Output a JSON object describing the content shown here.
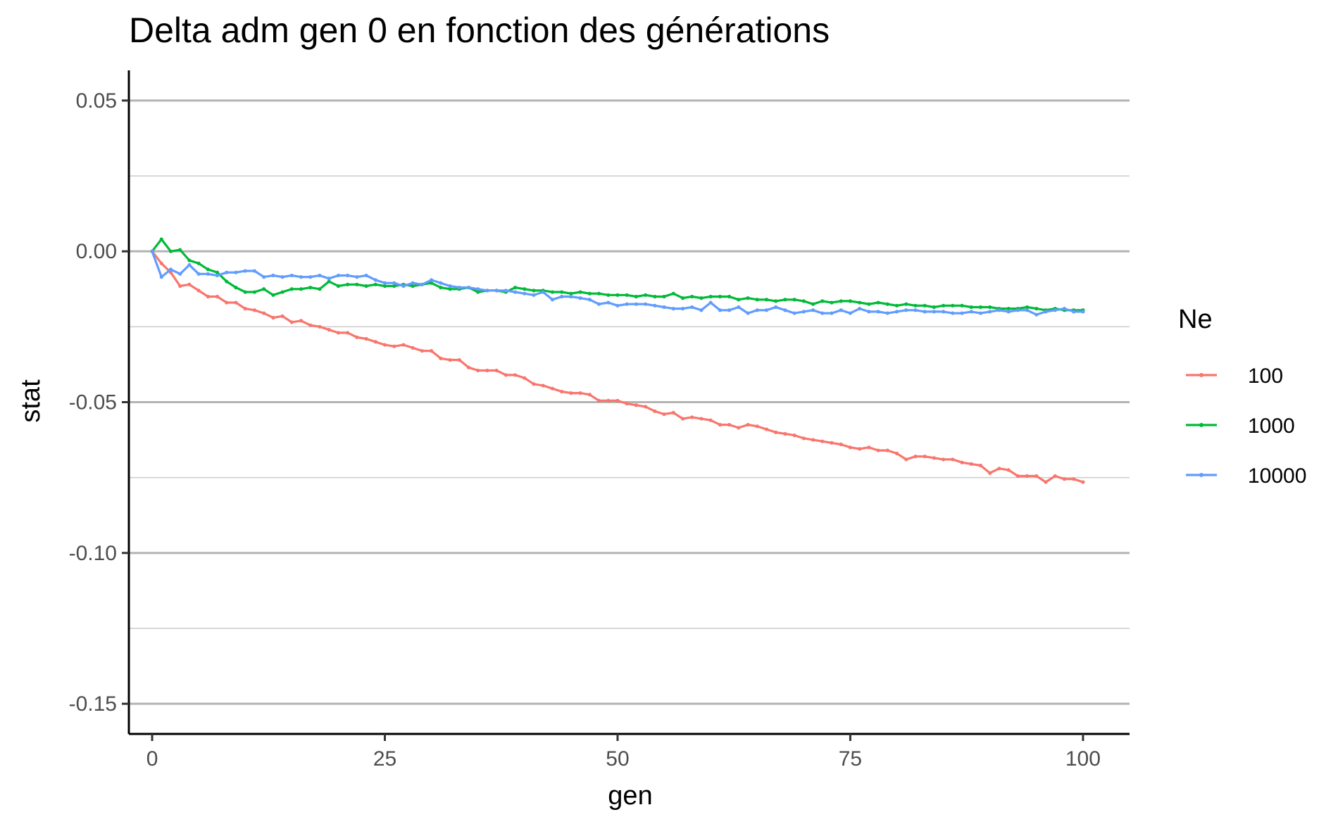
{
  "chart_data": {
    "type": "line",
    "title": "Delta adm gen 0 en fonction des générations",
    "xlabel": "gen",
    "ylabel": "stat",
    "xlim": [
      -2.5,
      105
    ],
    "ylim": [
      -0.16,
      0.06
    ],
    "x_ticks": [
      0,
      25,
      50,
      75,
      100
    ],
    "x_tick_labels": [
      "0",
      "25",
      "50",
      "75",
      "100"
    ],
    "y_ticks": [
      0.05,
      0.0,
      -0.05,
      -0.1,
      -0.15
    ],
    "y_tick_labels": [
      "0.05",
      "0.00",
      "-0.05",
      "-0.10",
      "-0.15"
    ],
    "y_minor_ticks": [
      0.025,
      -0.025,
      -0.075,
      -0.125
    ],
    "grid": "horizontal major and minor",
    "legend": {
      "title": "Ne",
      "position": "right"
    },
    "series": [
      {
        "name": "100",
        "color": "#F8766D",
        "x": [
          0,
          1,
          2,
          3,
          4,
          5,
          6,
          7,
          8,
          9,
          10,
          11,
          12,
          13,
          14,
          15,
          16,
          17,
          18,
          19,
          20,
          21,
          22,
          23,
          24,
          25,
          26,
          27,
          28,
          29,
          30,
          31,
          32,
          33,
          34,
          35,
          36,
          37,
          38,
          39,
          40,
          41,
          42,
          43,
          44,
          45,
          46,
          47,
          48,
          49,
          50,
          51,
          52,
          53,
          54,
          55,
          56,
          57,
          58,
          59,
          60,
          61,
          62,
          63,
          64,
          65,
          66,
          67,
          68,
          69,
          70,
          71,
          72,
          73,
          74,
          75,
          76,
          77,
          78,
          79,
          80,
          81,
          82,
          83,
          84,
          85,
          86,
          87,
          88,
          89,
          90,
          91,
          92,
          93,
          94,
          95,
          96,
          97,
          98,
          99,
          100
        ],
        "values": [
          0.0,
          -0.004,
          -0.007,
          -0.0115,
          -0.011,
          -0.013,
          -0.015,
          -0.015,
          -0.017,
          -0.017,
          -0.019,
          -0.0195,
          -0.0205,
          -0.022,
          -0.0215,
          -0.0235,
          -0.023,
          -0.0245,
          -0.025,
          -0.026,
          -0.027,
          -0.027,
          -0.0285,
          -0.029,
          -0.03,
          -0.031,
          -0.0315,
          -0.031,
          -0.032,
          -0.033,
          -0.033,
          -0.0355,
          -0.036,
          -0.036,
          -0.0385,
          -0.0395,
          -0.0395,
          -0.0395,
          -0.041,
          -0.041,
          -0.042,
          -0.044,
          -0.0445,
          -0.0455,
          -0.0465,
          -0.047,
          -0.047,
          -0.0475,
          -0.0495,
          -0.0495,
          -0.0495,
          -0.0505,
          -0.051,
          -0.0515,
          -0.053,
          -0.054,
          -0.0535,
          -0.0555,
          -0.055,
          -0.0555,
          -0.056,
          -0.0575,
          -0.0575,
          -0.0585,
          -0.0575,
          -0.058,
          -0.059,
          -0.06,
          -0.0605,
          -0.061,
          -0.062,
          -0.0625,
          -0.063,
          -0.0635,
          -0.064,
          -0.065,
          -0.0655,
          -0.065,
          -0.066,
          -0.066,
          -0.067,
          -0.069,
          -0.068,
          -0.068,
          -0.0685,
          -0.069,
          -0.069,
          -0.07,
          -0.0705,
          -0.071,
          -0.0735,
          -0.072,
          -0.0725,
          -0.0745,
          -0.0745,
          -0.0745,
          -0.0765,
          -0.0745,
          -0.0755,
          -0.0755,
          -0.0765
        ]
      },
      {
        "name": "1000",
        "color": "#00BA38",
        "x": [
          0,
          1,
          2,
          3,
          4,
          5,
          6,
          7,
          8,
          9,
          10,
          11,
          12,
          13,
          14,
          15,
          16,
          17,
          18,
          19,
          20,
          21,
          22,
          23,
          24,
          25,
          26,
          27,
          28,
          29,
          30,
          31,
          32,
          33,
          34,
          35,
          36,
          37,
          38,
          39,
          40,
          41,
          42,
          43,
          44,
          45,
          46,
          47,
          48,
          49,
          50,
          51,
          52,
          53,
          54,
          55,
          56,
          57,
          58,
          59,
          60,
          61,
          62,
          63,
          64,
          65,
          66,
          67,
          68,
          69,
          70,
          71,
          72,
          73,
          74,
          75,
          76,
          77,
          78,
          79,
          80,
          81,
          82,
          83,
          84,
          85,
          86,
          87,
          88,
          89,
          90,
          91,
          92,
          93,
          94,
          95,
          96,
          97,
          98,
          99,
          100
        ],
        "values": [
          0.0,
          0.004,
          0.0,
          0.0005,
          -0.003,
          -0.004,
          -0.006,
          -0.007,
          -0.01,
          -0.012,
          -0.0135,
          -0.0135,
          -0.0125,
          -0.0145,
          -0.0135,
          -0.0125,
          -0.0125,
          -0.012,
          -0.0125,
          -0.01,
          -0.0115,
          -0.011,
          -0.011,
          -0.0115,
          -0.011,
          -0.0115,
          -0.0115,
          -0.011,
          -0.0115,
          -0.011,
          -0.0105,
          -0.012,
          -0.0125,
          -0.0125,
          -0.012,
          -0.0135,
          -0.013,
          -0.013,
          -0.0135,
          -0.012,
          -0.0125,
          -0.013,
          -0.013,
          -0.0135,
          -0.0135,
          -0.014,
          -0.0135,
          -0.014,
          -0.014,
          -0.0145,
          -0.0145,
          -0.0145,
          -0.015,
          -0.0145,
          -0.015,
          -0.015,
          -0.014,
          -0.0155,
          -0.015,
          -0.0155,
          -0.015,
          -0.015,
          -0.015,
          -0.016,
          -0.0155,
          -0.016,
          -0.016,
          -0.0165,
          -0.016,
          -0.016,
          -0.0165,
          -0.0175,
          -0.0165,
          -0.017,
          -0.0165,
          -0.0165,
          -0.017,
          -0.0175,
          -0.017,
          -0.0175,
          -0.018,
          -0.0175,
          -0.018,
          -0.018,
          -0.0185,
          -0.018,
          -0.018,
          -0.018,
          -0.0185,
          -0.0185,
          -0.0185,
          -0.019,
          -0.019,
          -0.019,
          -0.0185,
          -0.019,
          -0.0195,
          -0.019,
          -0.0195,
          -0.0195,
          -0.0195
        ]
      },
      {
        "name": "10000",
        "color": "#619CFF",
        "x": [
          0,
          1,
          2,
          3,
          4,
          5,
          6,
          7,
          8,
          9,
          10,
          11,
          12,
          13,
          14,
          15,
          16,
          17,
          18,
          19,
          20,
          21,
          22,
          23,
          24,
          25,
          26,
          27,
          28,
          29,
          30,
          31,
          32,
          33,
          34,
          35,
          36,
          37,
          38,
          39,
          40,
          41,
          42,
          43,
          44,
          45,
          46,
          47,
          48,
          49,
          50,
          51,
          52,
          53,
          54,
          55,
          56,
          57,
          58,
          59,
          60,
          61,
          62,
          63,
          64,
          65,
          66,
          67,
          68,
          69,
          70,
          71,
          72,
          73,
          74,
          75,
          76,
          77,
          78,
          79,
          80,
          81,
          82,
          83,
          84,
          85,
          86,
          87,
          88,
          89,
          90,
          91,
          92,
          93,
          94,
          95,
          96,
          97,
          98,
          99,
          100
        ],
        "values": [
          0.0,
          -0.0085,
          -0.006,
          -0.0075,
          -0.0045,
          -0.0075,
          -0.0075,
          -0.008,
          -0.007,
          -0.007,
          -0.0065,
          -0.0065,
          -0.0085,
          -0.008,
          -0.0085,
          -0.008,
          -0.0085,
          -0.0085,
          -0.008,
          -0.009,
          -0.008,
          -0.008,
          -0.0085,
          -0.008,
          -0.0095,
          -0.0105,
          -0.0105,
          -0.0115,
          -0.0105,
          -0.011,
          -0.0095,
          -0.0105,
          -0.0115,
          -0.012,
          -0.012,
          -0.0125,
          -0.013,
          -0.013,
          -0.013,
          -0.0135,
          -0.014,
          -0.0145,
          -0.0135,
          -0.016,
          -0.015,
          -0.015,
          -0.0155,
          -0.016,
          -0.0175,
          -0.017,
          -0.018,
          -0.0175,
          -0.0175,
          -0.0175,
          -0.018,
          -0.0185,
          -0.019,
          -0.019,
          -0.0185,
          -0.0195,
          -0.017,
          -0.0195,
          -0.0195,
          -0.0185,
          -0.0205,
          -0.0195,
          -0.0195,
          -0.0185,
          -0.0195,
          -0.0205,
          -0.02,
          -0.0195,
          -0.0205,
          -0.0205,
          -0.0195,
          -0.0205,
          -0.019,
          -0.02,
          -0.02,
          -0.0205,
          -0.02,
          -0.0195,
          -0.0195,
          -0.02,
          -0.02,
          -0.02,
          -0.0205,
          -0.0205,
          -0.02,
          -0.0205,
          -0.02,
          -0.0195,
          -0.02,
          -0.0195,
          -0.0195,
          -0.021,
          -0.02,
          -0.0195,
          -0.019,
          -0.02,
          -0.02
        ]
      }
    ]
  }
}
